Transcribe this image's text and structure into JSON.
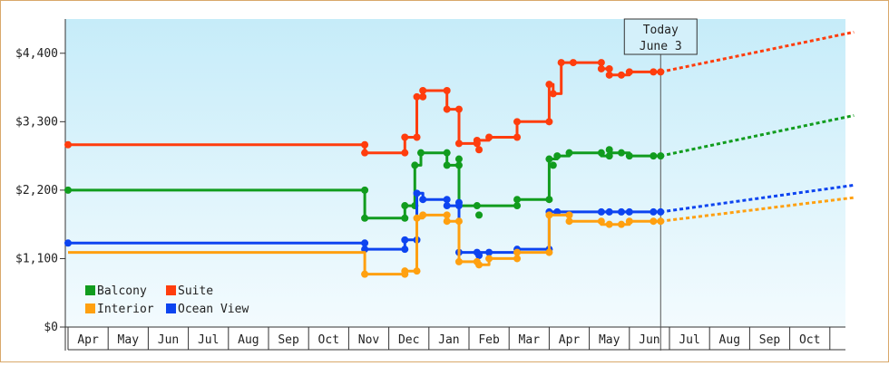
{
  "chart_data": {
    "type": "line",
    "title": "",
    "xlabel": "",
    "ylabel": "",
    "ylim": [
      0,
      4950
    ],
    "y_ticks": [
      "$0",
      "$1,100",
      "$2,200",
      "$3,300",
      "$4,400"
    ],
    "y_tick_values": [
      0,
      1100,
      2200,
      3300,
      4400
    ],
    "months": [
      "Apr",
      "May",
      "Jun",
      "Jul",
      "Aug",
      "Sep",
      "Oct",
      "Nov",
      "Dec",
      "Jan",
      "Feb",
      "Mar",
      "Apr",
      "May",
      "Jun",
      "Jul",
      "Aug",
      "Sep",
      "Oct"
    ],
    "today": {
      "line1": "Today",
      "line2": "June 3",
      "x": 14.78
    },
    "grid": false,
    "legend_placement": "bottom-left",
    "series": [
      {
        "name": "Suite",
        "color": "#ff3d0d",
        "points": [
          [
            0,
            2930
          ],
          [
            7.4,
            2930
          ],
          [
            7.4,
            2800
          ],
          [
            8.4,
            2800
          ],
          [
            8.4,
            3050
          ],
          [
            8.7,
            3050
          ],
          [
            8.7,
            3700
          ],
          [
            8.85,
            3700
          ],
          [
            8.85,
            3800
          ],
          [
            9.45,
            3800
          ],
          [
            9.45,
            3500
          ],
          [
            9.75,
            3500
          ],
          [
            9.75,
            2950
          ],
          [
            10.2,
            2950
          ],
          [
            10.2,
            3000
          ],
          [
            10.5,
            3000
          ],
          [
            10.5,
            3050
          ],
          [
            11.2,
            3050
          ],
          [
            11.2,
            3300
          ],
          [
            12.0,
            3300
          ],
          [
            12.0,
            3900
          ],
          [
            12.1,
            3900
          ],
          [
            12.1,
            3750
          ],
          [
            12.3,
            3750
          ],
          [
            12.3,
            4250
          ],
          [
            13.3,
            4250
          ],
          [
            13.3,
            4150
          ],
          [
            13.5,
            4150
          ],
          [
            13.5,
            4050
          ],
          [
            14.0,
            4050
          ],
          [
            14.0,
            4100
          ],
          [
            14.78,
            4100
          ]
        ],
        "markers": [
          [
            0,
            2930
          ],
          [
            7.4,
            2930
          ],
          [
            7.4,
            2800
          ],
          [
            8.4,
            2800
          ],
          [
            8.4,
            3050
          ],
          [
            8.7,
            3050
          ],
          [
            8.7,
            3700
          ],
          [
            8.85,
            3700
          ],
          [
            8.85,
            3800
          ],
          [
            9.45,
            3800
          ],
          [
            9.45,
            3500
          ],
          [
            9.75,
            3500
          ],
          [
            9.75,
            2950
          ],
          [
            10.2,
            2950
          ],
          [
            10.2,
            3000
          ],
          [
            10.25,
            2850
          ],
          [
            10.5,
            3050
          ],
          [
            11.2,
            3050
          ],
          [
            11.2,
            3300
          ],
          [
            12.0,
            3300
          ],
          [
            12.0,
            3900
          ],
          [
            12.1,
            3750
          ],
          [
            12.3,
            4250
          ],
          [
            12.6,
            4250
          ],
          [
            13.3,
            4250
          ],
          [
            13.3,
            4150
          ],
          [
            13.5,
            4150
          ],
          [
            13.5,
            4050
          ],
          [
            13.8,
            4050
          ],
          [
            14.0,
            4100
          ],
          [
            14.6,
            4100
          ],
          [
            14.78,
            4100
          ]
        ],
        "forecast": [
          [
            14.78,
            4100
          ],
          [
            19.6,
            4740
          ]
        ]
      },
      {
        "name": "Balcony",
        "color": "#119c1e",
        "points": [
          [
            0,
            2200
          ],
          [
            7.4,
            2200
          ],
          [
            7.4,
            1750
          ],
          [
            8.4,
            1750
          ],
          [
            8.4,
            1950
          ],
          [
            8.65,
            1950
          ],
          [
            8.65,
            2600
          ],
          [
            8.8,
            2600
          ],
          [
            8.8,
            2800
          ],
          [
            9.45,
            2800
          ],
          [
            9.45,
            2600
          ],
          [
            9.75,
            2600
          ],
          [
            9.75,
            1950
          ],
          [
            10.2,
            1950
          ],
          [
            10.2,
            1950
          ],
          [
            11.2,
            1950
          ],
          [
            11.2,
            2050
          ],
          [
            12.0,
            2050
          ],
          [
            12.0,
            2700
          ],
          [
            12.2,
            2700
          ],
          [
            12.2,
            2750
          ],
          [
            12.5,
            2750
          ],
          [
            12.5,
            2800
          ],
          [
            13.3,
            2800
          ],
          [
            13.3,
            2750
          ],
          [
            13.5,
            2750
          ],
          [
            13.5,
            2800
          ],
          [
            14.0,
            2800
          ],
          [
            14.0,
            2750
          ],
          [
            14.78,
            2750
          ]
        ],
        "markers": [
          [
            0,
            2200
          ],
          [
            7.4,
            2200
          ],
          [
            7.4,
            1750
          ],
          [
            8.4,
            1750
          ],
          [
            8.4,
            1950
          ],
          [
            8.65,
            1950
          ],
          [
            8.65,
            2600
          ],
          [
            8.8,
            2800
          ],
          [
            9.45,
            2800
          ],
          [
            9.45,
            2600
          ],
          [
            9.75,
            2600
          ],
          [
            9.75,
            2700
          ],
          [
            10.2,
            1950
          ],
          [
            10.25,
            1800
          ],
          [
            11.2,
            1950
          ],
          [
            11.2,
            2050
          ],
          [
            12.0,
            2050
          ],
          [
            12.0,
            2700
          ],
          [
            12.1,
            2600
          ],
          [
            12.2,
            2750
          ],
          [
            12.5,
            2800
          ],
          [
            13.3,
            2800
          ],
          [
            13.5,
            2750
          ],
          [
            13.5,
            2850
          ],
          [
            13.8,
            2800
          ],
          [
            14.0,
            2750
          ],
          [
            14.6,
            2750
          ],
          [
            14.78,
            2750
          ]
        ],
        "forecast": [
          [
            14.78,
            2750
          ],
          [
            19.6,
            3400
          ]
        ]
      },
      {
        "name": "Ocean View",
        "color": "#0d44f0",
        "points": [
          [
            0,
            1350
          ],
          [
            7.4,
            1350
          ],
          [
            7.4,
            1250
          ],
          [
            8.4,
            1250
          ],
          [
            8.4,
            1400
          ],
          [
            8.7,
            1400
          ],
          [
            8.7,
            2150
          ],
          [
            8.85,
            2150
          ],
          [
            8.85,
            2050
          ],
          [
            9.45,
            2050
          ],
          [
            9.45,
            1950
          ],
          [
            9.75,
            1950
          ],
          [
            9.75,
            1200
          ],
          [
            10.2,
            1200
          ],
          [
            10.2,
            1200
          ],
          [
            11.2,
            1200
          ],
          [
            11.2,
            1250
          ],
          [
            12.0,
            1250
          ],
          [
            12.0,
            1850
          ],
          [
            12.5,
            1850
          ],
          [
            12.5,
            1850
          ],
          [
            14.78,
            1850
          ]
        ],
        "markers": [
          [
            0,
            1350
          ],
          [
            7.4,
            1350
          ],
          [
            7.4,
            1250
          ],
          [
            8.4,
            1250
          ],
          [
            8.4,
            1400
          ],
          [
            8.7,
            1400
          ],
          [
            8.7,
            2150
          ],
          [
            8.85,
            2050
          ],
          [
            9.45,
            2050
          ],
          [
            9.45,
            1950
          ],
          [
            9.75,
            1950
          ],
          [
            9.75,
            2000
          ],
          [
            9.75,
            1200
          ],
          [
            10.2,
            1200
          ],
          [
            10.25,
            1150
          ],
          [
            10.5,
            1200
          ],
          [
            11.2,
            1250
          ],
          [
            12.0,
            1250
          ],
          [
            12.0,
            1850
          ],
          [
            12.2,
            1850
          ],
          [
            13.3,
            1850
          ],
          [
            13.5,
            1850
          ],
          [
            13.8,
            1850
          ],
          [
            14.0,
            1850
          ],
          [
            14.6,
            1850
          ],
          [
            14.78,
            1850
          ]
        ],
        "forecast": [
          [
            14.78,
            1850
          ],
          [
            19.6,
            2280
          ]
        ]
      },
      {
        "name": "Interior",
        "color": "#ffa010",
        "points": [
          [
            0,
            1200
          ],
          [
            7.4,
            1200
          ],
          [
            7.4,
            850
          ],
          [
            8.4,
            850
          ],
          [
            8.4,
            900
          ],
          [
            8.7,
            900
          ],
          [
            8.7,
            1750
          ],
          [
            8.85,
            1750
          ],
          [
            8.85,
            1800
          ],
          [
            9.45,
            1800
          ],
          [
            9.45,
            1700
          ],
          [
            9.75,
            1700
          ],
          [
            9.75,
            1050
          ],
          [
            10.2,
            1050
          ],
          [
            10.2,
            1000
          ],
          [
            10.5,
            1000
          ],
          [
            10.5,
            1100
          ],
          [
            11.2,
            1100
          ],
          [
            11.2,
            1200
          ],
          [
            12.0,
            1200
          ],
          [
            12.0,
            1800
          ],
          [
            12.5,
            1800
          ],
          [
            12.5,
            1700
          ],
          [
            13.3,
            1700
          ],
          [
            13.3,
            1650
          ],
          [
            14.0,
            1650
          ],
          [
            14.0,
            1700
          ],
          [
            14.78,
            1700
          ]
        ],
        "markers": [
          [
            7.4,
            850
          ],
          [
            8.4,
            850
          ],
          [
            8.4,
            900
          ],
          [
            8.7,
            900
          ],
          [
            8.7,
            1750
          ],
          [
            8.85,
            1800
          ],
          [
            9.45,
            1800
          ],
          [
            9.45,
            1700
          ],
          [
            9.75,
            1700
          ],
          [
            9.75,
            1050
          ],
          [
            10.2,
            1050
          ],
          [
            10.25,
            1000
          ],
          [
            10.5,
            1100
          ],
          [
            11.2,
            1100
          ],
          [
            11.2,
            1200
          ],
          [
            12.0,
            1200
          ],
          [
            12.0,
            1800
          ],
          [
            12.5,
            1800
          ],
          [
            12.5,
            1700
          ],
          [
            13.3,
            1700
          ],
          [
            13.5,
            1650
          ],
          [
            13.8,
            1650
          ],
          [
            14.0,
            1700
          ],
          [
            14.6,
            1700
          ],
          [
            14.78,
            1700
          ]
        ],
        "forecast": [
          [
            14.78,
            1700
          ],
          [
            19.6,
            2080
          ]
        ]
      }
    ],
    "legend": [
      {
        "name": "Balcony",
        "color": "#119c1e"
      },
      {
        "name": "Suite",
        "color": "#ff3d0d"
      },
      {
        "name": "Interior",
        "color": "#ffa010"
      },
      {
        "name": "Ocean View",
        "color": "#0d44f0"
      }
    ]
  }
}
